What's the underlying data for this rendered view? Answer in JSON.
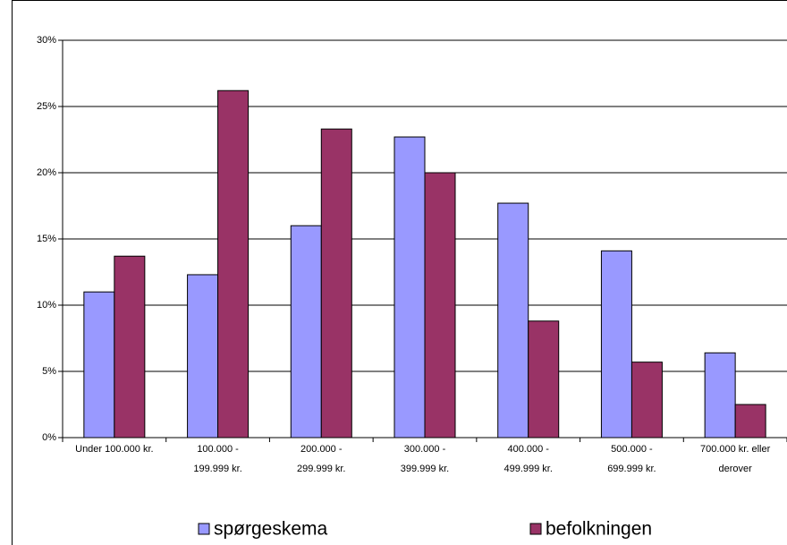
{
  "chart_data": {
    "type": "bar",
    "categories": [
      "Under 100.000 kr.",
      "100.000 - 199.999 kr.",
      "200.000 - 299.999 kr.",
      "300.000 - 399.999 kr.",
      "400.000 - 499.999 kr.",
      "500.000 - 699.999 kr.",
      "700.000 kr. eller derover"
    ],
    "series": [
      {
        "name": "spørgeskema",
        "color": "#9999ff",
        "values": [
          11.0,
          12.3,
          16.0,
          22.7,
          17.7,
          14.1,
          6.4
        ]
      },
      {
        "name": "befolkningen",
        "color": "#993366",
        "values": [
          13.7,
          26.2,
          23.3,
          20.0,
          8.8,
          5.7,
          2.5
        ]
      }
    ],
    "ylim": [
      0,
      30
    ],
    "yticks": [
      {
        "value": 0,
        "label": "0%"
      },
      {
        "value": 5,
        "label": "5%"
      },
      {
        "value": 10,
        "label": "10%"
      },
      {
        "value": 15,
        "label": "15%"
      },
      {
        "value": 20,
        "label": "20%"
      },
      {
        "value": 25,
        "label": "25%"
      },
      {
        "value": 30,
        "label": "30%"
      }
    ],
    "grid": true
  }
}
